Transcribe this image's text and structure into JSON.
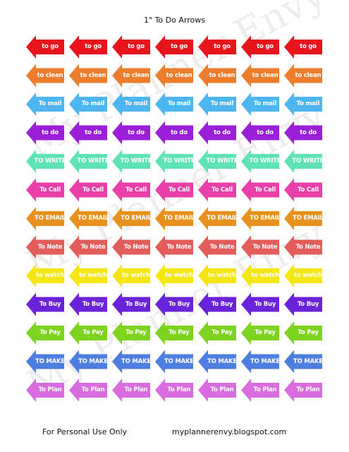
{
  "page": {
    "title": "1\" To Do Arrows",
    "footer_left": "For Personal Use Only",
    "footer_right": "myplannerenvy.blogspot.com"
  },
  "watermark": {
    "text": "My Planner Envy"
  },
  "rows": [
    {
      "label": "to go",
      "color": "#e8141b"
    },
    {
      "label": "to clean",
      "color": "#ec7d2c"
    },
    {
      "label": "To mail",
      "color": "#4db6f0"
    },
    {
      "label": "to do",
      "color": "#9b1fd8"
    },
    {
      "label": "TO WRITE",
      "color": "#5fe3b6"
    },
    {
      "label": "To Call",
      "color": "#e93fa8"
    },
    {
      "label": "TO EMAIL",
      "color": "#e7921f"
    },
    {
      "label": "To Note",
      "color": "#e25c59"
    },
    {
      "label": "to watch",
      "color": "#f3e612"
    },
    {
      "label": "To Buy",
      "color": "#6a23d8"
    },
    {
      "label": "To Pay",
      "color": "#7ed321"
    },
    {
      "label": "TO MAKE",
      "color": "#4e7fe0"
    },
    {
      "label": "To Plan",
      "color": "#d96ddf"
    }
  ]
}
